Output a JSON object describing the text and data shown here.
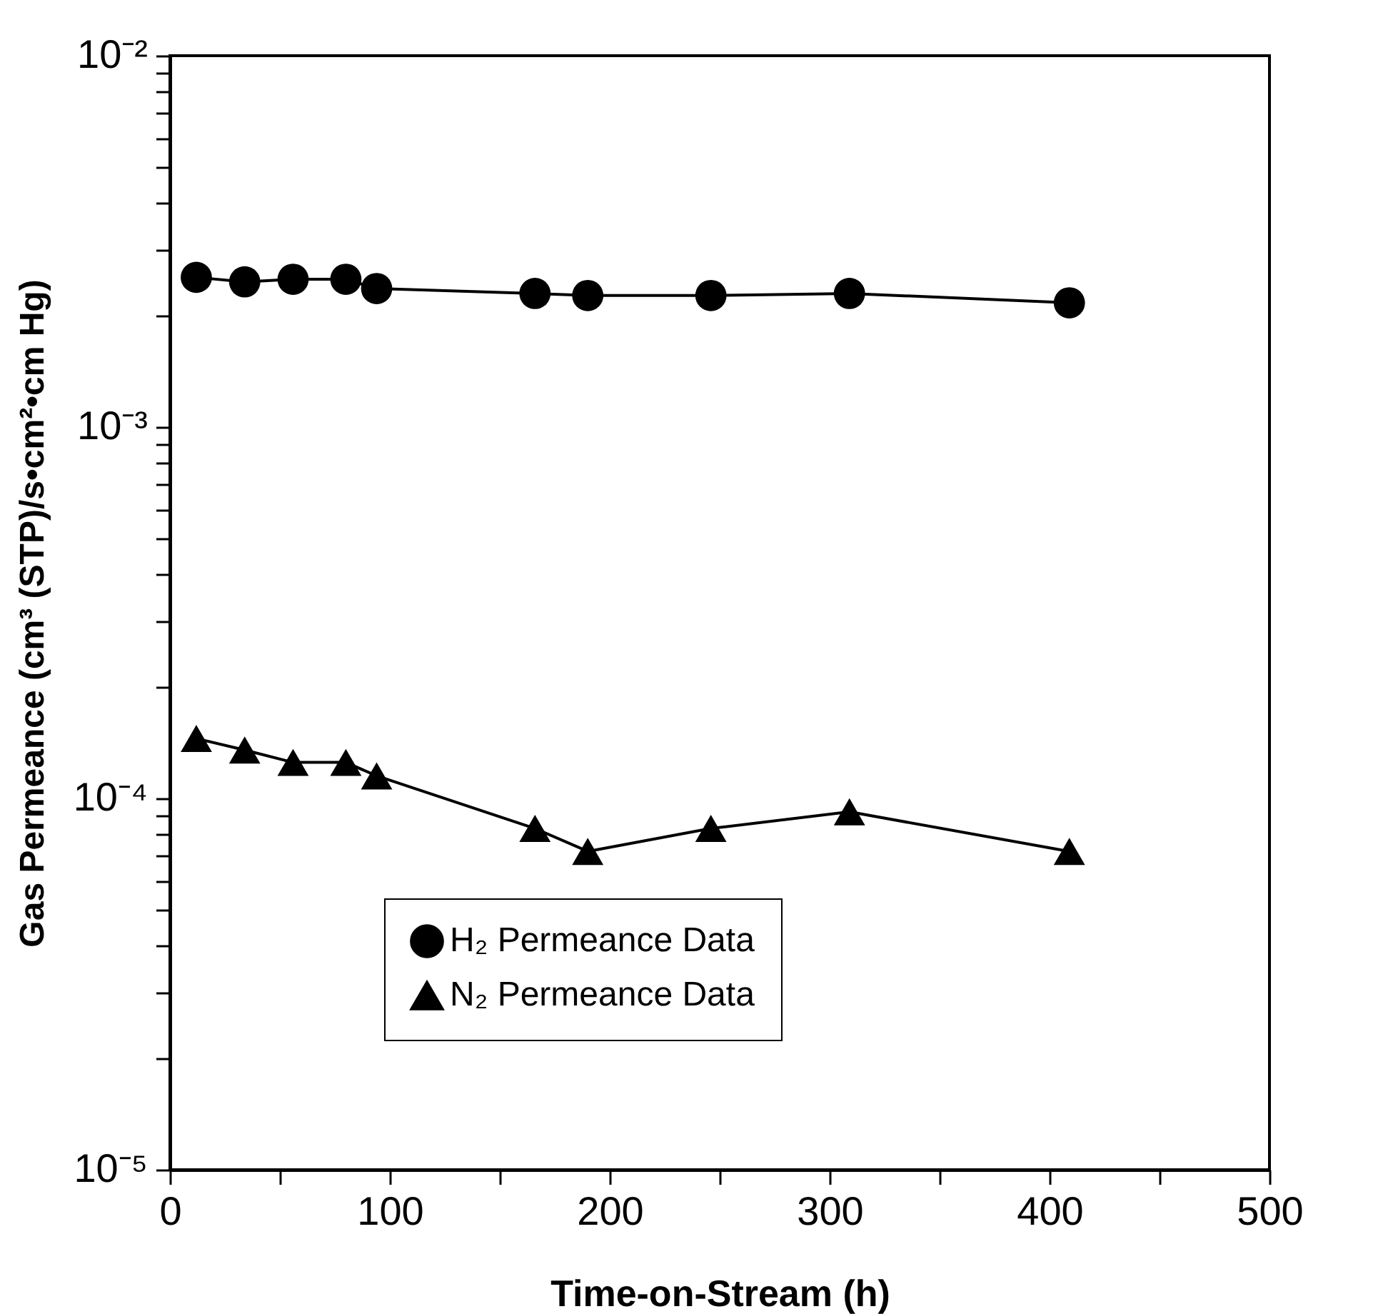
{
  "chart_data": {
    "type": "line",
    "xlabel": "Time-on-Stream (h)",
    "ylabel": "Gas Permeance (cm³ (STP)/s•cm²•cm Hg)",
    "log": "y",
    "grid": false,
    "legend": "bottom",
    "xlim": [
      0,
      500
    ],
    "xticks": [
      0,
      {
        "value": 50,
        "label": null
      },
      100,
      {
        "value": 150,
        "label": null
      },
      200,
      {
        "value": 250,
        "label": null
      },
      300,
      {
        "value": 350,
        "label": null
      },
      400,
      {
        "value": 450,
        "label": null
      },
      500
    ],
    "ylim": [
      1e-05,
      0.01
    ],
    "yticks": [
      {
        "value": 1e-05,
        "label": "10⁻⁵"
      },
      {
        "value": 2e-05,
        "label": null
      },
      {
        "value": 3e-05,
        "label": null
      },
      {
        "value": 4e-05,
        "label": null
      },
      {
        "value": 5e-05,
        "label": null
      },
      {
        "value": 6e-05,
        "label": null
      },
      {
        "value": 7e-05,
        "label": null
      },
      {
        "value": 8e-05,
        "label": null
      },
      {
        "value": 9e-05,
        "label": null
      },
      {
        "value": 0.0001,
        "label": "10⁻⁴"
      },
      {
        "value": 0.0002,
        "label": null
      },
      {
        "value": 0.0003,
        "label": null
      },
      {
        "value": 0.0004,
        "label": null
      },
      {
        "value": 0.0005,
        "label": null
      },
      {
        "value": 0.0006,
        "label": null
      },
      {
        "value": 0.0007,
        "label": null
      },
      {
        "value": 0.0008,
        "label": null
      },
      {
        "value": 0.0009,
        "label": null
      },
      {
        "value": 0.001,
        "label": "10⁻³"
      },
      {
        "value": 0.002,
        "label": null
      },
      {
        "value": 0.003,
        "label": null
      },
      {
        "value": 0.004,
        "label": null
      },
      {
        "value": 0.005,
        "label": null
      },
      {
        "value": 0.006,
        "label": null
      },
      {
        "value": 0.007,
        "label": null
      },
      {
        "value": 0.008,
        "label": null
      },
      {
        "value": 0.009,
        "label": null
      },
      {
        "value": 0.01,
        "label": "10⁻²"
      }
    ],
    "x": [
      12,
      34,
      56,
      80,
      94,
      166,
      190,
      246,
      309,
      409
    ],
    "series": [
      {
        "name": "H₂ Permeance Data",
        "color": "#000000",
        "marker": "circle",
        "values": [
          0.00253,
          0.00246,
          0.0025,
          0.0025,
          0.00236,
          0.00229,
          0.00226,
          0.00226,
          0.00229,
          0.00216
        ]
      },
      {
        "name": "N₂ Permeance Data",
        "color": "#000000",
        "marker": "triangle",
        "values": [
          0.000145,
          0.000135,
          0.000125,
          0.000125,
          0.000115,
          8.3e-05,
          7.2e-05,
          8.3e-05,
          9.2e-05,
          7.2e-05
        ]
      }
    ]
  }
}
